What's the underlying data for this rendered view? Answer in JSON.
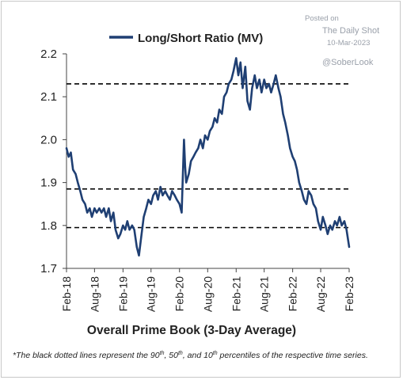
{
  "watermark": {
    "posted_on": "Posted on",
    "source": "The Daily Shot",
    "date": "10-Mar-2023",
    "handle": "@SoberLook"
  },
  "footnote": {
    "pre": "*The black dotted lines represent the 90",
    "sup1": "th",
    "mid1": ", 50",
    "sup2": "th",
    "mid2": ", and 10",
    "sup3": "th",
    "post": " percentiles of the respective time series."
  },
  "colors": {
    "series": "#1f3f73",
    "reference_lines": "#000000",
    "watermark": "#9aa0aa"
  },
  "chart_data": {
    "type": "line",
    "title": "",
    "xlabel": "Overall Prime Book (3-Day Average)",
    "ylabel": "",
    "ylim": [
      1.7,
      2.2
    ],
    "yticks": [
      1.7,
      1.8,
      1.9,
      2.0,
      2.1,
      2.2
    ],
    "ytick_labels": [
      "1.7",
      "1.8",
      "1.9",
      "2.0",
      "2.1",
      "2.2"
    ],
    "xlim": [
      "2018-02",
      "2023-02"
    ],
    "xticks": [
      "2018-02",
      "2018-08",
      "2019-02",
      "2019-08",
      "2020-02",
      "2020-08",
      "2021-02",
      "2021-08",
      "2022-02",
      "2022-08",
      "2023-02"
    ],
    "xtick_labels": [
      "Feb-18",
      "Aug-18",
      "Feb-19",
      "Aug-19",
      "Feb-20",
      "Aug-20",
      "Feb-21",
      "Aug-21",
      "Feb-22",
      "Aug-22",
      "Feb-23"
    ],
    "grid": false,
    "legend": "top-center",
    "reference_lines": [
      {
        "value": 2.13,
        "style": "dashed"
      },
      {
        "value": 1.885,
        "style": "dashed"
      },
      {
        "value": 1.795,
        "style": "dashed"
      }
    ],
    "series": [
      {
        "name": "Long/Short Ratio (MV)",
        "points": [
          [
            "2018-02-01",
            1.98
          ],
          [
            "2018-02-15",
            1.96
          ],
          [
            "2018-03-01",
            1.97
          ],
          [
            "2018-03-15",
            1.93
          ],
          [
            "2018-04-01",
            1.92
          ],
          [
            "2018-04-15",
            1.9
          ],
          [
            "2018-05-01",
            1.88
          ],
          [
            "2018-05-15",
            1.86
          ],
          [
            "2018-06-01",
            1.85
          ],
          [
            "2018-06-15",
            1.83
          ],
          [
            "2018-07-01",
            1.84
          ],
          [
            "2018-07-15",
            1.82
          ],
          [
            "2018-08-01",
            1.84
          ],
          [
            "2018-08-15",
            1.83
          ],
          [
            "2018-09-01",
            1.84
          ],
          [
            "2018-09-15",
            1.83
          ],
          [
            "2018-10-01",
            1.84
          ],
          [
            "2018-10-15",
            1.82
          ],
          [
            "2018-11-01",
            1.84
          ],
          [
            "2018-11-15",
            1.81
          ],
          [
            "2018-12-01",
            1.83
          ],
          [
            "2018-12-15",
            1.79
          ],
          [
            "2019-01-01",
            1.77
          ],
          [
            "2019-01-15",
            1.78
          ],
          [
            "2019-02-01",
            1.8
          ],
          [
            "2019-02-15",
            1.79
          ],
          [
            "2019-03-01",
            1.81
          ],
          [
            "2019-03-15",
            1.79
          ],
          [
            "2019-04-01",
            1.8
          ],
          [
            "2019-04-15",
            1.79
          ],
          [
            "2019-05-01",
            1.75
          ],
          [
            "2019-05-15",
            1.73
          ],
          [
            "2019-06-01",
            1.78
          ],
          [
            "2019-06-15",
            1.82
          ],
          [
            "2019-07-01",
            1.84
          ],
          [
            "2019-07-15",
            1.86
          ],
          [
            "2019-08-01",
            1.85
          ],
          [
            "2019-08-15",
            1.87
          ],
          [
            "2019-09-01",
            1.88
          ],
          [
            "2019-09-15",
            1.86
          ],
          [
            "2019-10-01",
            1.89
          ],
          [
            "2019-10-15",
            1.87
          ],
          [
            "2019-11-01",
            1.88
          ],
          [
            "2019-11-15",
            1.87
          ],
          [
            "2019-12-01",
            1.86
          ],
          [
            "2019-12-15",
            1.88
          ],
          [
            "2020-01-01",
            1.87
          ],
          [
            "2020-01-15",
            1.86
          ],
          [
            "2020-02-01",
            1.85
          ],
          [
            "2020-02-15",
            1.83
          ],
          [
            "2020-03-01",
            2.0
          ],
          [
            "2020-03-08",
            1.94
          ],
          [
            "2020-03-15",
            1.9
          ],
          [
            "2020-04-01",
            1.92
          ],
          [
            "2020-04-15",
            1.95
          ],
          [
            "2020-05-01",
            1.96
          ],
          [
            "2020-05-15",
            1.97
          ],
          [
            "2020-06-01",
            1.98
          ],
          [
            "2020-06-15",
            2.0
          ],
          [
            "2020-07-01",
            1.98
          ],
          [
            "2020-07-15",
            2.01
          ],
          [
            "2020-08-01",
            2.0
          ],
          [
            "2020-08-15",
            2.02
          ],
          [
            "2020-09-01",
            2.03
          ],
          [
            "2020-09-15",
            2.05
          ],
          [
            "2020-10-01",
            2.04
          ],
          [
            "2020-10-15",
            2.07
          ],
          [
            "2020-11-01",
            2.06
          ],
          [
            "2020-11-15",
            2.1
          ],
          [
            "2020-12-01",
            2.11
          ],
          [
            "2020-12-15",
            2.13
          ],
          [
            "2021-01-01",
            2.14
          ],
          [
            "2021-01-15",
            2.16
          ],
          [
            "2021-02-01",
            2.19
          ],
          [
            "2021-02-15",
            2.15
          ],
          [
            "2021-03-01",
            2.18
          ],
          [
            "2021-03-15",
            2.12
          ],
          [
            "2021-04-01",
            2.17
          ],
          [
            "2021-04-15",
            2.09
          ],
          [
            "2021-05-01",
            2.07
          ],
          [
            "2021-05-15",
            2.12
          ],
          [
            "2021-06-01",
            2.15
          ],
          [
            "2021-06-15",
            2.12
          ],
          [
            "2021-07-01",
            2.14
          ],
          [
            "2021-07-15",
            2.11
          ],
          [
            "2021-08-01",
            2.14
          ],
          [
            "2021-08-15",
            2.12
          ],
          [
            "2021-09-01",
            2.13
          ],
          [
            "2021-09-15",
            2.11
          ],
          [
            "2021-10-01",
            2.13
          ],
          [
            "2021-10-15",
            2.15
          ],
          [
            "2021-11-01",
            2.12
          ],
          [
            "2021-11-15",
            2.1
          ],
          [
            "2021-12-01",
            2.06
          ],
          [
            "2021-12-15",
            2.04
          ],
          [
            "2022-01-01",
            2.01
          ],
          [
            "2022-01-15",
            1.98
          ],
          [
            "2022-02-01",
            1.96
          ],
          [
            "2022-02-15",
            1.95
          ],
          [
            "2022-03-01",
            1.93
          ],
          [
            "2022-03-15",
            1.9
          ],
          [
            "2022-04-01",
            1.88
          ],
          [
            "2022-04-15",
            1.86
          ],
          [
            "2022-05-01",
            1.85
          ],
          [
            "2022-05-15",
            1.88
          ],
          [
            "2022-06-01",
            1.87
          ],
          [
            "2022-06-15",
            1.85
          ],
          [
            "2022-07-01",
            1.84
          ],
          [
            "2022-07-15",
            1.81
          ],
          [
            "2022-08-01",
            1.79
          ],
          [
            "2022-08-15",
            1.82
          ],
          [
            "2022-09-01",
            1.8
          ],
          [
            "2022-09-15",
            1.78
          ],
          [
            "2022-10-01",
            1.8
          ],
          [
            "2022-10-15",
            1.79
          ],
          [
            "2022-11-01",
            1.81
          ],
          [
            "2022-11-15",
            1.8
          ],
          [
            "2022-12-01",
            1.82
          ],
          [
            "2022-12-15",
            1.8
          ],
          [
            "2023-01-01",
            1.81
          ],
          [
            "2023-01-15",
            1.79
          ],
          [
            "2023-02-01",
            1.75
          ]
        ]
      }
    ]
  }
}
